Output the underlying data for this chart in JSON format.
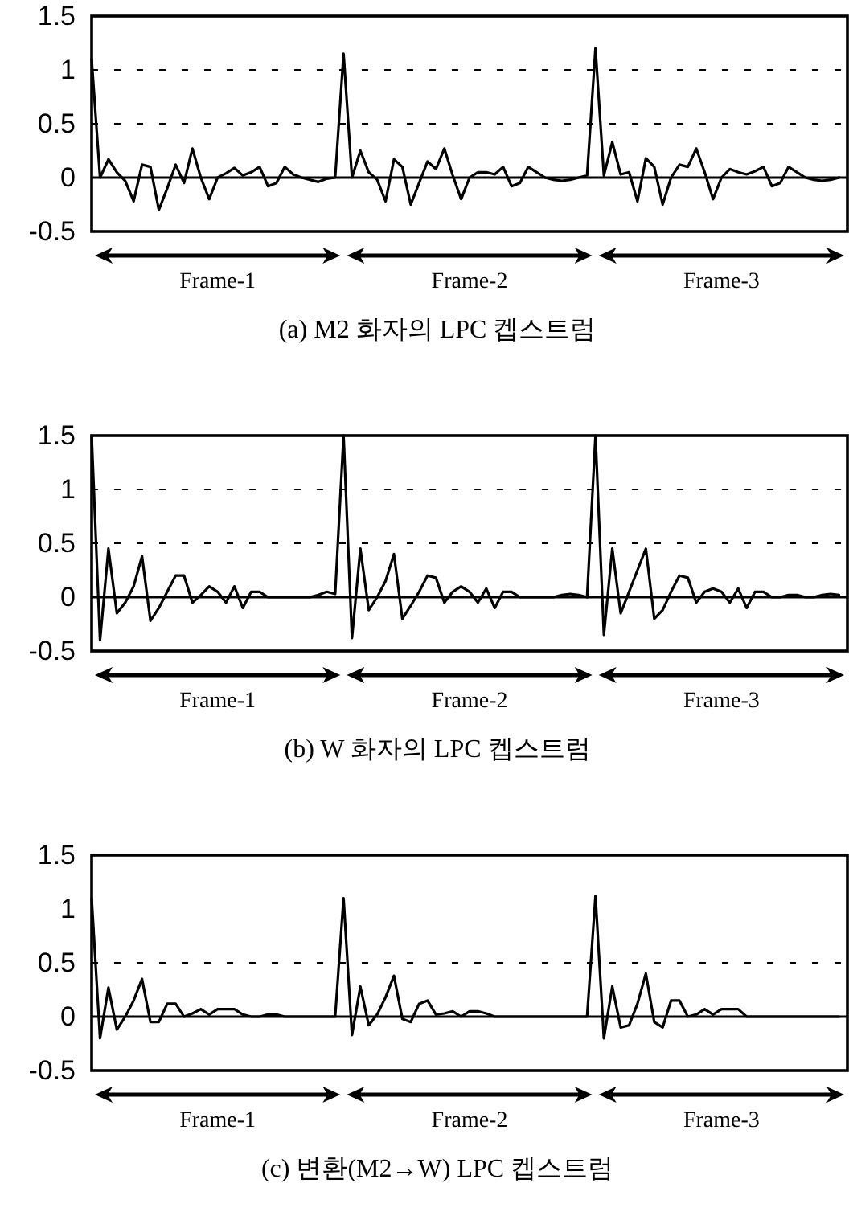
{
  "chart_data": [
    {
      "type": "line",
      "title": "(a) M2 화자의 LPC 켑스트럼",
      "categories": [
        null,
        null,
        null,
        null,
        null,
        null,
        null,
        null,
        null,
        null,
        null,
        null,
        null,
        null,
        null,
        null,
        null,
        null,
        null,
        null,
        null,
        null,
        null,
        null,
        null,
        null,
        null,
        null,
        null,
        null,
        null,
        null,
        null,
        null,
        null,
        null,
        null,
        null,
        null,
        null,
        null,
        null,
        null,
        null,
        null,
        null,
        null,
        null,
        null,
        null,
        null,
        null,
        null,
        null,
        null,
        null,
        null,
        null,
        null,
        null,
        null,
        null,
        null,
        null,
        null,
        null,
        null,
        null,
        null,
        null,
        null,
        null,
        null,
        null,
        null,
        null,
        null,
        null,
        null,
        null,
        null,
        null,
        null,
        null,
        null,
        null,
        null,
        null,
        null,
        null
      ],
      "series": [
        {
          "color": "#000000",
          "values": [
            1.1,
            0.0,
            0.17,
            0.05,
            -0.03,
            -0.22,
            0.12,
            0.1,
            -0.3,
            -0.1,
            0.12,
            -0.05,
            0.27,
            0.0,
            -0.2,
            0.0,
            0.04,
            0.09,
            0.02,
            0.05,
            0.1,
            -0.08,
            -0.05,
            0.1,
            0.03,
            0.0,
            -0.02,
            -0.04,
            -0.01,
            0.0,
            1.15,
            0.0,
            0.25,
            0.05,
            -0.02,
            -0.22,
            0.17,
            0.1,
            -0.25,
            -0.05,
            0.15,
            0.08,
            0.27,
            0.02,
            -0.2,
            0.0,
            0.05,
            0.05,
            0.03,
            0.1,
            -0.08,
            -0.05,
            0.1,
            0.05,
            0.0,
            -0.02,
            -0.03,
            -0.02,
            0.0,
            0.02,
            1.2,
            0.02,
            0.33,
            0.03,
            0.05,
            -0.22,
            0.18,
            0.1,
            -0.25,
            0.0,
            0.12,
            0.1,
            0.27,
            0.05,
            -0.2,
            0.0,
            0.08,
            0.05,
            0.03,
            0.06,
            0.1,
            -0.08,
            -0.05,
            0.1,
            0.05,
            0.0,
            -0.02,
            -0.03,
            -0.02,
            0.0
          ]
        }
      ],
      "ylim": [
        -0.5,
        1.5
      ],
      "yticks": [
        -0.5,
        0,
        0.5,
        1,
        1.5
      ],
      "tick_labels": "y",
      "ref_lines": [
        {
          "axis": "y",
          "value": 0,
          "line_style": "solid"
        },
        {
          "axis": "y",
          "value": 0.5,
          "line_style": "dashed"
        },
        {
          "axis": "y",
          "value": 1,
          "line_style": "dashed"
        }
      ],
      "annotations": [
        "Frame-1",
        "Frame-2",
        "Frame-3"
      ]
    },
    {
      "type": "line",
      "title": "(b) W 화자의 LPC 켑스트럼",
      "categories": [
        null,
        null,
        null,
        null,
        null,
        null,
        null,
        null,
        null,
        null,
        null,
        null,
        null,
        null,
        null,
        null,
        null,
        null,
        null,
        null,
        null,
        null,
        null,
        null,
        null,
        null,
        null,
        null,
        null,
        null,
        null,
        null,
        null,
        null,
        null,
        null,
        null,
        null,
        null,
        null,
        null,
        null,
        null,
        null,
        null,
        null,
        null,
        null,
        null,
        null,
        null,
        null,
        null,
        null,
        null,
        null,
        null,
        null,
        null,
        null,
        null,
        null,
        null,
        null,
        null,
        null,
        null,
        null,
        null,
        null,
        null,
        null,
        null,
        null,
        null,
        null,
        null,
        null,
        null,
        null,
        null,
        null,
        null,
        null,
        null,
        null,
        null,
        null,
        null,
        null
      ],
      "series": [
        {
          "color": "#000000",
          "values": [
            1.5,
            -0.4,
            0.45,
            -0.15,
            -0.05,
            0.1,
            0.38,
            -0.22,
            -0.1,
            0.05,
            0.2,
            0.2,
            -0.05,
            0.02,
            0.1,
            0.05,
            -0.05,
            0.1,
            -0.1,
            0.05,
            0.05,
            0.0,
            0.0,
            0.0,
            0.0,
            0.0,
            0.0,
            0.02,
            0.05,
            0.03,
            1.5,
            -0.38,
            0.45,
            -0.12,
            0.0,
            0.15,
            0.4,
            -0.2,
            -0.08,
            0.05,
            0.2,
            0.18,
            -0.05,
            0.05,
            0.1,
            0.05,
            -0.05,
            0.08,
            -0.1,
            0.05,
            0.05,
            0.0,
            0.0,
            0.0,
            0.0,
            0.0,
            0.02,
            0.03,
            0.02,
            0.0,
            1.5,
            -0.35,
            0.45,
            -0.15,
            0.05,
            0.25,
            0.45,
            -0.2,
            -0.12,
            0.05,
            0.2,
            0.18,
            -0.05,
            0.05,
            0.08,
            0.05,
            -0.05,
            0.08,
            -0.1,
            0.05,
            0.05,
            0.0,
            0.0,
            0.02,
            0.02,
            0.0,
            0.0,
            0.02,
            0.03,
            0.02
          ]
        }
      ],
      "ylim": [
        -0.5,
        1.5
      ],
      "yticks": [
        -0.5,
        0,
        0.5,
        1,
        1.5
      ],
      "tick_labels": "y",
      "ref_lines": [
        {
          "axis": "y",
          "value": 0,
          "line_style": "solid"
        },
        {
          "axis": "y",
          "value": 0.5,
          "line_style": "dashed"
        },
        {
          "axis": "y",
          "value": 1,
          "line_style": "dashed"
        }
      ],
      "annotations": [
        "Frame-1",
        "Frame-2",
        "Frame-3"
      ]
    },
    {
      "type": "line",
      "title": "(c) 변환(M2→W) LPC 켑스트럼",
      "categories": [
        null,
        null,
        null,
        null,
        null,
        null,
        null,
        null,
        null,
        null,
        null,
        null,
        null,
        null,
        null,
        null,
        null,
        null,
        null,
        null,
        null,
        null,
        null,
        null,
        null,
        null,
        null,
        null,
        null,
        null,
        null,
        null,
        null,
        null,
        null,
        null,
        null,
        null,
        null,
        null,
        null,
        null,
        null,
        null,
        null,
        null,
        null,
        null,
        null,
        null,
        null,
        null,
        null,
        null,
        null,
        null,
        null,
        null,
        null,
        null,
        null,
        null,
        null,
        null,
        null,
        null,
        null,
        null,
        null,
        null,
        null,
        null,
        null,
        null,
        null,
        null,
        null,
        null,
        null,
        null,
        null,
        null,
        null,
        null,
        null,
        null,
        null,
        null,
        null,
        null
      ],
      "series": [
        {
          "color": "#000000",
          "values": [
            1.1,
            -0.2,
            0.27,
            -0.12,
            0.0,
            0.15,
            0.35,
            -0.05,
            -0.05,
            0.12,
            0.12,
            0.0,
            0.03,
            0.07,
            0.02,
            0.07,
            0.07,
            0.07,
            0.02,
            0.0,
            0.0,
            0.02,
            0.02,
            0.0,
            0.0,
            0.0,
            0.0,
            0.0,
            0.0,
            0.0,
            1.1,
            -0.17,
            0.28,
            -0.08,
            0.02,
            0.18,
            0.38,
            -0.02,
            -0.05,
            0.12,
            0.15,
            0.02,
            0.03,
            0.05,
            0.0,
            0.05,
            0.05,
            0.03,
            0.0,
            0.0,
            0.0,
            0.0,
            0.0,
            0.0,
            0.0,
            0.0,
            0.0,
            0.0,
            0.0,
            0.0,
            1.12,
            -0.2,
            0.28,
            -0.1,
            -0.08,
            0.12,
            0.4,
            -0.05,
            -0.1,
            0.15,
            0.15,
            0.0,
            0.02,
            0.07,
            0.02,
            0.07,
            0.07,
            0.07,
            0.0,
            0.0,
            0.0,
            0.0,
            0.0,
            0.0,
            0.0,
            0.0,
            0.0,
            0.0,
            0.0,
            0.0
          ]
        }
      ],
      "ylim": [
        -0.5,
        1.5
      ],
      "yticks": [
        -0.5,
        0,
        0.5,
        1,
        1.5
      ],
      "tick_labels": "y",
      "ref_lines": [
        {
          "axis": "y",
          "value": 0,
          "line_style": "solid"
        },
        {
          "axis": "y",
          "value": 0.5,
          "line_style": "dashed"
        }
      ],
      "annotations": [
        "Frame-1",
        "Frame-2",
        "Frame-3"
      ]
    }
  ]
}
